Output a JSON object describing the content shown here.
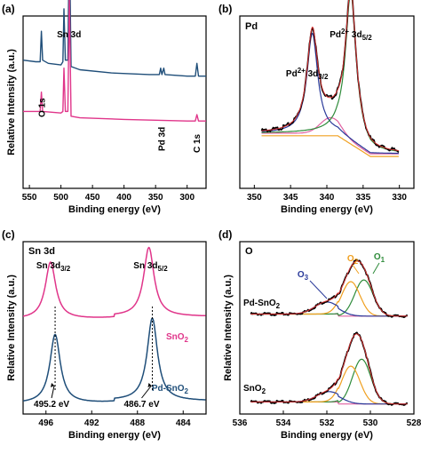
{
  "colors": {
    "navy": "#1f4e79",
    "magenta": "#e0358a",
    "black": "#000000",
    "red": "#d32f2f",
    "green": "#2e8b3a",
    "orange": "#f0a020",
    "blue": "#2a3a9a",
    "pink": "#e060a0"
  },
  "chart_data": [
    {
      "panel": "(a)",
      "type": "line",
      "title": "",
      "xlabel": "Binding energy (eV)",
      "ylabel": "Relative Intensity (a.u.)",
      "xlim": [
        560,
        270
      ],
      "x_ticks": [
        550,
        500,
        450,
        400,
        350,
        300
      ],
      "annotations": [
        {
          "text": "O 1s",
          "x": 530
        },
        {
          "text": "Sn 3d",
          "x": 490
        },
        {
          "text": "Pd 3d",
          "x": 340
        },
        {
          "text": "C 1s",
          "x": 284
        }
      ],
      "series": [
        {
          "color": "navy",
          "points": [
            [
              560,
              0.8
            ],
            [
              540,
              0.79
            ],
            [
              533,
              0.79
            ],
            [
              531,
              0.98
            ],
            [
              529,
              0.8
            ],
            [
              520,
              0.78
            ],
            [
              500,
              0.77
            ],
            [
              497,
              0.79
            ],
            [
              495.2,
              1.12
            ],
            [
              493,
              0.8
            ],
            [
              489,
              0.8
            ],
            [
              486.7,
              1.58
            ],
            [
              484,
              0.76
            ],
            [
              470,
              0.74
            ],
            [
              420,
              0.72
            ],
            [
              360,
              0.71
            ],
            [
              344,
              0.71
            ],
            [
              342,
              0.75
            ],
            [
              340,
              0.71
            ],
            [
              337,
              0.75
            ],
            [
              335,
              0.71
            ],
            [
              300,
              0.7
            ],
            [
              287,
              0.7
            ],
            [
              284.5,
              0.78
            ],
            [
              282,
              0.7
            ],
            [
              270,
              0.7
            ]
          ]
        },
        {
          "color": "magenta",
          "points": [
            [
              560,
              0.48
            ],
            [
              540,
              0.48
            ],
            [
              533,
              0.48
            ],
            [
              531,
              0.6
            ],
            [
              529,
              0.48
            ],
            [
              500,
              0.47
            ],
            [
              497,
              0.48
            ],
            [
              495.2,
              0.75
            ],
            [
              493,
              0.48
            ],
            [
              489,
              0.48
            ],
            [
              486.7,
              1.2
            ],
            [
              484,
              0.45
            ],
            [
              470,
              0.44
            ],
            [
              400,
              0.43
            ],
            [
              300,
              0.42
            ],
            [
              287,
              0.42
            ],
            [
              284.5,
              0.46
            ],
            [
              282,
              0.42
            ],
            [
              270,
              0.42
            ]
          ]
        }
      ]
    },
    {
      "panel": "(b)",
      "type": "line",
      "title": "Pd",
      "xlabel": "Binding energy (eV)",
      "ylabel": "",
      "xlim": [
        352,
        328
      ],
      "x_ticks": [
        350,
        345,
        340,
        335,
        330
      ],
      "annotations": [
        {
          "text": "Pd",
          "sup": "2+",
          "rest": " 3d",
          "sub": "3/2",
          "x": 342
        },
        {
          "text": "Pd",
          "sup": "2+",
          "rest": " 3d",
          "sub": "5/2",
          "x": 336.7
        }
      ],
      "peaks": [
        {
          "center": 342.0,
          "width": 0.9,
          "height": 0.58
        },
        {
          "center": 336.7,
          "width": 0.9,
          "height": 0.86
        }
      ],
      "x_range_fit": [
        349,
        330
      ]
    },
    {
      "panel": "(c)",
      "type": "line",
      "title": "Sn 3d",
      "xlabel": "Binding energy (eV)",
      "ylabel": "Relative Intensity (a.u.)",
      "xlim": [
        498,
        482
      ],
      "x_ticks": [
        496,
        492,
        488,
        484
      ],
      "peak_labels": [
        {
          "main": "Sn 3d",
          "sub": "3/2",
          "x": 495.2
        },
        {
          "main": "Sn 3d",
          "sub": "5/2",
          "x": 486.7
        }
      ],
      "energy_labels": [
        {
          "text": "495.2 eV",
          "x": 495.2
        },
        {
          "text": "486.7 eV",
          "x": 486.7
        }
      ],
      "series": [
        {
          "name": "SnO",
          "name_sub": "2",
          "color": "magenta",
          "offset": 0.55,
          "peaks": [
            {
              "center": 495.6,
              "height": 0.33
            },
            {
              "center": 487.0,
              "height": 0.4
            }
          ]
        },
        {
          "name": "Pd-SnO",
          "name_sub": "2",
          "color": "navy",
          "offset": 0.06,
          "peaks": [
            {
              "center": 495.2,
              "height": 0.4
            },
            {
              "center": 486.7,
              "height": 0.48
            }
          ]
        }
      ]
    },
    {
      "panel": "(d)",
      "type": "line",
      "title": "O",
      "xlabel": "Binding energy (eV)",
      "ylabel": "Relative Intensity (a.u.)",
      "xlim": [
        536,
        528
      ],
      "x_ticks": [
        536,
        534,
        532,
        530,
        528
      ],
      "components": [
        {
          "label": "O",
          "label_sub": "1",
          "color": "green",
          "x": 530.2
        },
        {
          "label": "O",
          "label_sub": "2",
          "color": "orange",
          "x": 531.0
        },
        {
          "label": "O",
          "label_sub": "3",
          "color": "blue",
          "x": 532.5
        }
      ],
      "series": [
        {
          "name": "Pd-SnO",
          "name_sub": "2",
          "offset": 0.56,
          "peaks": [
            {
              "center": 530.3,
              "height": 0.21,
              "color": "green"
            },
            {
              "center": 530.9,
              "height": 0.2,
              "color": "orange"
            },
            {
              "center": 532.0,
              "height": 0.07,
              "color": "blue"
            }
          ]
        },
        {
          "name": "SnO",
          "name_sub": "2",
          "offset": 0.05,
          "peaks": [
            {
              "center": 530.4,
              "height": 0.26,
              "color": "green"
            },
            {
              "center": 530.9,
              "height": 0.22,
              "color": "orange"
            },
            {
              "center": 531.9,
              "height": 0.06,
              "color": "blue"
            }
          ]
        }
      ]
    }
  ]
}
